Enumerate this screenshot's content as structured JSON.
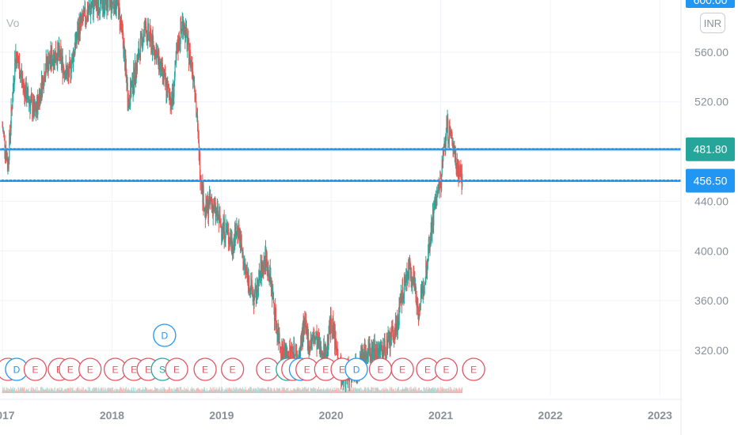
{
  "volume_label": "Vo",
  "currency": "INR",
  "top_price_tag": "600.00",
  "colors": {
    "up": "#26a69a",
    "down": "#ef5350",
    "level_line": "#2196f3",
    "badge_green": "#26a69a",
    "badge_blue": "#2196f3",
    "grid": "#f0f3fa"
  },
  "chart_data": {
    "type": "candlestick",
    "title": "",
    "x_axis": {
      "ticks": [
        "2017",
        "2018",
        "2019",
        "2020",
        "2021",
        "2022",
        "2023"
      ]
    },
    "y_axis": {
      "ticks": [
        "320.00",
        "360.00",
        "400.00",
        "440.00",
        "480.00",
        "520.00",
        "560.00"
      ],
      "range": [
        292,
        606
      ]
    },
    "horizontal_levels": [
      {
        "value": 481.8,
        "label": "481.80",
        "badge_color": "#26a69a"
      },
      {
        "value": 456.5,
        "label": "456.50",
        "badge_color": "#2196f3"
      }
    ],
    "price_path": [
      [
        2017.0,
        500
      ],
      [
        2017.05,
        470
      ],
      [
        2017.12,
        560
      ],
      [
        2017.2,
        530
      ],
      [
        2017.3,
        510
      ],
      [
        2017.4,
        550
      ],
      [
        2017.5,
        560
      ],
      [
        2017.6,
        540
      ],
      [
        2017.7,
        580
      ],
      [
        2017.8,
        595
      ],
      [
        2017.85,
        600
      ],
      [
        2018.05,
        600
      ],
      [
        2018.1,
        570
      ],
      [
        2018.15,
        520
      ],
      [
        2018.2,
        540
      ],
      [
        2018.3,
        580
      ],
      [
        2018.4,
        560
      ],
      [
        2018.5,
        530
      ],
      [
        2018.55,
        520
      ],
      [
        2018.6,
        565
      ],
      [
        2018.65,
        585
      ],
      [
        2018.7,
        560
      ],
      [
        2018.75,
        540
      ],
      [
        2018.8,
        470
      ],
      [
        2018.85,
        430
      ],
      [
        2018.9,
        440
      ],
      [
        2019.0,
        420
      ],
      [
        2019.05,
        415
      ],
      [
        2019.1,
        405
      ],
      [
        2019.15,
        420
      ],
      [
        2019.2,
        390
      ],
      [
        2019.3,
        360
      ],
      [
        2019.35,
        380
      ],
      [
        2019.4,
        395
      ],
      [
        2019.45,
        375
      ],
      [
        2019.5,
        340
      ],
      [
        2019.55,
        320
      ],
      [
        2019.6,
        315
      ],
      [
        2019.65,
        320
      ],
      [
        2019.7,
        310
      ],
      [
        2019.75,
        340
      ],
      [
        2019.8,
        325
      ],
      [
        2019.85,
        330
      ],
      [
        2019.9,
        320
      ],
      [
        2019.95,
        315
      ],
      [
        2020.0,
        345
      ],
      [
        2020.05,
        320
      ],
      [
        2020.1,
        300
      ],
      [
        2020.2,
        305
      ],
      [
        2020.3,
        315
      ],
      [
        2020.4,
        320
      ],
      [
        2020.5,
        320
      ],
      [
        2020.6,
        340
      ],
      [
        2020.65,
        365
      ],
      [
        2020.7,
        385
      ],
      [
        2020.75,
        380
      ],
      [
        2020.8,
        350
      ],
      [
        2020.85,
        375
      ],
      [
        2020.9,
        410
      ],
      [
        2020.95,
        440
      ],
      [
        2021.0,
        455
      ],
      [
        2021.05,
        500
      ],
      [
        2021.1,
        490
      ],
      [
        2021.15,
        470
      ],
      [
        2021.2,
        456
      ]
    ],
    "volume_ylim": [
      0,
      1
    ],
    "events": [
      {
        "type": "E",
        "x": 2017.05
      },
      {
        "type": "D",
        "x": 2017.13
      },
      {
        "type": "E",
        "x": 2017.3
      },
      {
        "type": "E",
        "x": 2017.52
      },
      {
        "type": "E",
        "x": 2017.62
      },
      {
        "type": "E",
        "x": 2017.8
      },
      {
        "type": "E",
        "x": 2018.03
      },
      {
        "type": "E",
        "x": 2018.2
      },
      {
        "type": "E",
        "x": 2018.33
      },
      {
        "type": "S",
        "x": 2018.46
      },
      {
        "type": "E",
        "x": 2018.59
      },
      {
        "type": "E",
        "x": 2018.85
      },
      {
        "type": "E",
        "x": 2019.1
      },
      {
        "type": "E",
        "x": 2019.42
      },
      {
        "type": "S",
        "x": 2019.6
      },
      {
        "type": "E",
        "x": 2019.65
      },
      {
        "type": "D",
        "x": 2019.72
      },
      {
        "type": "E",
        "x": 2019.78
      },
      {
        "type": "E",
        "x": 2019.95
      },
      {
        "type": "E",
        "x": 2020.1
      },
      {
        "type": "D",
        "x": 2020.23
      },
      {
        "type": "E",
        "x": 2020.45
      },
      {
        "type": "E",
        "x": 2020.65
      },
      {
        "type": "E",
        "x": 2020.88
      },
      {
        "type": "E",
        "x": 2021.05
      },
      {
        "type": "E",
        "x": 2021.3
      },
      {
        "type": "D",
        "x": 2018.48,
        "raised": true
      }
    ],
    "grid": true
  }
}
